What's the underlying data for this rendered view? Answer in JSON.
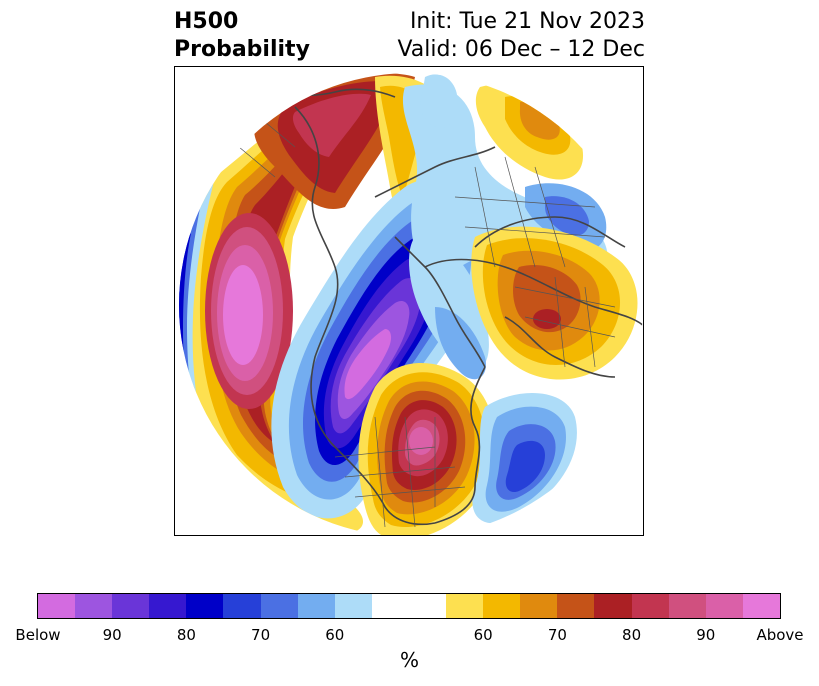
{
  "title": {
    "left_line1": "H500",
    "left_line2": "Probability",
    "right_line1": "Init: Tue 21 Nov 2023",
    "right_line2": "Valid: 06 Dec – 12 Dec"
  },
  "map": {
    "projection": "north-polar-stereographic",
    "features": [
      {
        "name": "above-anomaly-north-america-east",
        "category": "Above",
        "level_pct": 90
      },
      {
        "name": "below-anomaly-north-america-west",
        "category": "Below",
        "level_pct": 90
      },
      {
        "name": "above-anomaly-north-pacific",
        "category": "Above",
        "level_pct": 90
      },
      {
        "name": "below-anomaly-north-atlantic",
        "category": "Below",
        "level_pct": 80
      },
      {
        "name": "above-anomaly-europe",
        "category": "Above",
        "level_pct": 70
      }
    ]
  },
  "colorbar": {
    "colors": [
      "#d36be0",
      "#9d55e0",
      "#6a35d8",
      "#3618d0",
      "#0000c8",
      "#2640d8",
      "#4b70e3",
      "#73adf0",
      "#addcf8",
      "#ffffff",
      "#ffffff",
      "#fde050",
      "#f3b800",
      "#e08a0e",
      "#c55318",
      "#ab2024",
      "#c23550",
      "#d0507f",
      "#da60a8",
      "#e678da"
    ],
    "ticks": [
      "Below",
      "90",
      "80",
      "70",
      "60",
      "60",
      "70",
      "80",
      "90",
      "Above"
    ],
    "label": "%"
  }
}
